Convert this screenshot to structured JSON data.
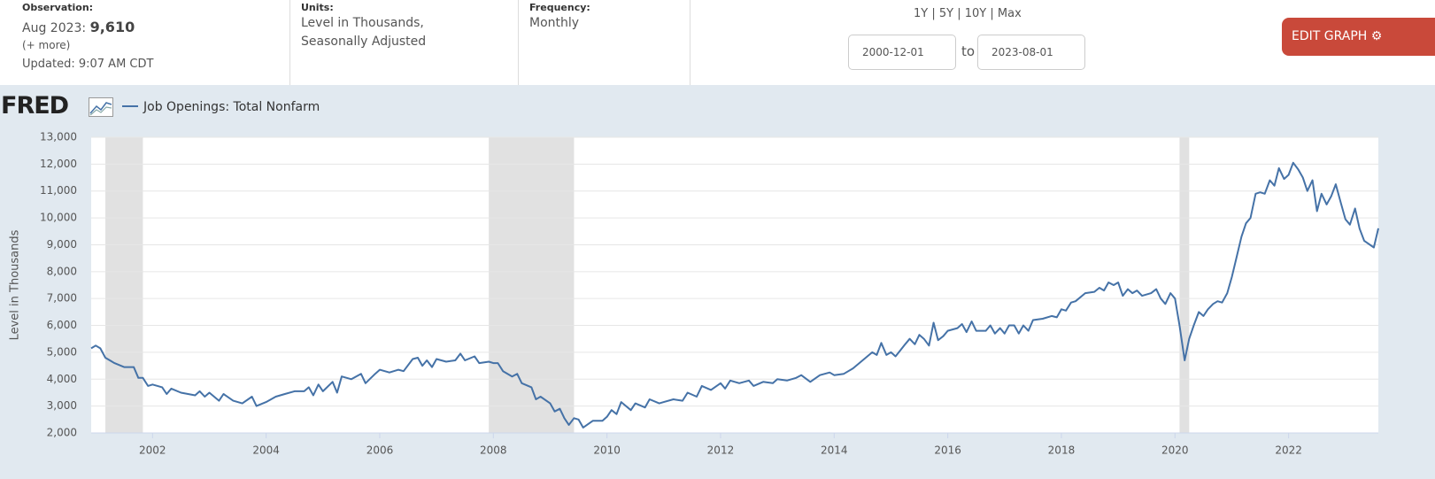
{
  "header": {
    "observation_label": "Observation:",
    "observation_date": "Aug 2023:",
    "observation_value": "9,610",
    "more": "(+ more)",
    "updated": "Updated: 9:07 AM CDT",
    "units_label": "Units:",
    "units_line1": "Level in Thousands,",
    "units_line2": "Seasonally Adjusted",
    "frequency_label": "Frequency:",
    "frequency": "Monthly",
    "ranges": [
      "1Y",
      "5Y",
      "10Y",
      "Max"
    ],
    "start_date": "2000-12-01",
    "to": "to",
    "end_date": "2023-08-01",
    "edit_button": "EDIT GRAPH",
    "logo": "FRED"
  },
  "chart_data": {
    "type": "line",
    "ylabel": "Level in Thousands",
    "grid": true,
    "x": [
      2000.92,
      2001.0,
      2001.08,
      2001.17,
      2001.33,
      2001.5,
      2001.67,
      2001.75,
      2001.83,
      2001.92,
      2002.0,
      2002.17,
      2002.25,
      2002.33,
      2002.5,
      2002.75,
      2002.83,
      2002.92,
      2003.0,
      2003.17,
      2003.25,
      2003.42,
      2003.58,
      2003.75,
      2003.83,
      2004.0,
      2004.17,
      2004.33,
      2004.5,
      2004.67,
      2004.75,
      2004.83,
      2004.92,
      2005.0,
      2005.17,
      2005.25,
      2005.33,
      2005.5,
      2005.67,
      2005.75,
      2005.92,
      2006.0,
      2006.17,
      2006.33,
      2006.42,
      2006.58,
      2006.67,
      2006.75,
      2006.83,
      2006.92,
      2007.0,
      2007.17,
      2007.33,
      2007.42,
      2007.5,
      2007.67,
      2007.75,
      2007.92,
      2008.0,
      2008.08,
      2008.17,
      2008.33,
      2008.42,
      2008.5,
      2008.67,
      2008.75,
      2008.83,
      2009.0,
      2009.08,
      2009.17,
      2009.25,
      2009.33,
      2009.42,
      2009.5,
      2009.58,
      2009.75,
      2009.92,
      2010.0,
      2010.08,
      2010.17,
      2010.25,
      2010.42,
      2010.5,
      2010.67,
      2010.75,
      2010.92,
      2011.0,
      2011.17,
      2011.33,
      2011.42,
      2011.58,
      2011.67,
      2011.83,
      2012.0,
      2012.08,
      2012.17,
      2012.33,
      2012.5,
      2012.58,
      2012.75,
      2012.92,
      2013.0,
      2013.17,
      2013.33,
      2013.42,
      2013.58,
      2013.75,
      2013.92,
      2014.0,
      2014.17,
      2014.33,
      2014.5,
      2014.67,
      2014.75,
      2014.83,
      2014.92,
      2015.0,
      2015.08,
      2015.25,
      2015.33,
      2015.42,
      2015.5,
      2015.58,
      2015.67,
      2015.75,
      2015.83,
      2015.92,
      2016.0,
      2016.17,
      2016.25,
      2016.33,
      2016.42,
      2016.5,
      2016.67,
      2016.75,
      2016.83,
      2016.92,
      2017.0,
      2017.08,
      2017.17,
      2017.25,
      2017.33,
      2017.42,
      2017.5,
      2017.67,
      2017.83,
      2017.92,
      2018.0,
      2018.08,
      2018.17,
      2018.25,
      2018.42,
      2018.58,
      2018.67,
      2018.75,
      2018.83,
      2018.92,
      2019.0,
      2019.08,
      2019.17,
      2019.25,
      2019.33,
      2019.42,
      2019.5,
      2019.58,
      2019.67,
      2019.75,
      2019.83,
      2019.92,
      2020.0,
      2020.08,
      2020.17,
      2020.25,
      2020.33,
      2020.42,
      2020.5,
      2020.58,
      2020.67,
      2020.75,
      2020.83,
      2020.92,
      2021.0,
      2021.08,
      2021.17,
      2021.25,
      2021.33,
      2021.42,
      2021.5,
      2021.58,
      2021.67,
      2021.75,
      2021.83,
      2021.92,
      2022.0,
      2022.08,
      2022.17,
      2022.25,
      2022.33,
      2022.42,
      2022.5,
      2022.58,
      2022.67,
      2022.75,
      2022.83,
      2022.92,
      2023.0,
      2023.08,
      2023.17,
      2023.25,
      2023.33,
      2023.5,
      2023.58
    ],
    "series": [
      {
        "name": "Job Openings: Total Nonfarm",
        "color": "#4572a7",
        "values": [
          5150,
          5250,
          5150,
          4800,
          4600,
          4450,
          4450,
          4050,
          4050,
          3750,
          3800,
          3700,
          3450,
          3650,
          3500,
          3400,
          3550,
          3350,
          3500,
          3200,
          3450,
          3200,
          3100,
          3350,
          3000,
          3150,
          3350,
          3450,
          3550,
          3550,
          3700,
          3400,
          3800,
          3550,
          3900,
          3500,
          4100,
          4000,
          4200,
          3850,
          4200,
          4350,
          4250,
          4350,
          4300,
          4750,
          4800,
          4500,
          4700,
          4450,
          4750,
          4650,
          4700,
          4950,
          4700,
          4850,
          4600,
          4650,
          4600,
          4600,
          4300,
          4100,
          4200,
          3850,
          3700,
          3250,
          3350,
          3100,
          2800,
          2900,
          2550,
          2300,
          2550,
          2500,
          2200,
          2450,
          2450,
          2600,
          2850,
          2700,
          3150,
          2850,
          3100,
          2950,
          3250,
          3100,
          3150,
          3250,
          3200,
          3500,
          3350,
          3750,
          3600,
          3850,
          3650,
          3950,
          3850,
          3950,
          3750,
          3900,
          3850,
          4000,
          3950,
          4050,
          4150,
          3900,
          4150,
          4250,
          4150,
          4200,
          4400,
          4700,
          5000,
          4900,
          5350,
          4900,
          5000,
          4850,
          5300,
          5500,
          5300,
          5650,
          5500,
          5250,
          6100,
          5450,
          5600,
          5800,
          5900,
          6050,
          5750,
          6150,
          5800,
          5800,
          6000,
          5700,
          5900,
          5700,
          6000,
          6000,
          5700,
          6000,
          5800,
          6200,
          6250,
          6350,
          6300,
          6600,
          6550,
          6850,
          6900,
          7200,
          7250,
          7400,
          7300,
          7600,
          7500,
          7600,
          7100,
          7350,
          7200,
          7300,
          7100,
          7150,
          7200,
          7350,
          7000,
          6800,
          7200,
          7000,
          6000,
          4700,
          5500,
          6000,
          6500,
          6350,
          6600,
          6800,
          6900,
          6850,
          7200,
          7800,
          8500,
          9300,
          9800,
          10000,
          10900,
          10950,
          10900,
          11400,
          11200,
          11850,
          11450,
          11600,
          12050,
          11800,
          11500,
          11000,
          11400,
          10250,
          10900,
          10500,
          10800,
          11250,
          10550,
          9950,
          9750,
          10350,
          9600,
          9150,
          8900,
          9610
        ]
      }
    ],
    "recessions": [
      [
        2001.17,
        2001.83
      ],
      [
        2007.92,
        2009.42
      ],
      [
        2020.08,
        2020.25
      ]
    ],
    "recession_color": "#e1e1e1",
    "xlim": [
      2000.92,
      2023.58
    ],
    "xticks": [
      2002,
      2004,
      2006,
      2008,
      2010,
      2012,
      2014,
      2016,
      2018,
      2020,
      2022
    ],
    "ylim": [
      2000,
      13000
    ],
    "yticks": [
      {
        "value": 2000,
        "label": "2,000"
      },
      {
        "value": 3000,
        "label": "3,000"
      },
      {
        "value": 4000,
        "label": "4,000"
      },
      {
        "value": 5000,
        "label": "5,000"
      },
      {
        "value": 6000,
        "label": "6,000"
      },
      {
        "value": 7000,
        "label": "7,000"
      },
      {
        "value": 8000,
        "label": "8,000"
      },
      {
        "value": 9000,
        "label": "9,000"
      },
      {
        "value": 10000,
        "label": "10,000"
      },
      {
        "value": 11000,
        "label": "11,000"
      },
      {
        "value": 12000,
        "label": "12,000"
      },
      {
        "value": 13000,
        "label": "13,000"
      }
    ]
  }
}
